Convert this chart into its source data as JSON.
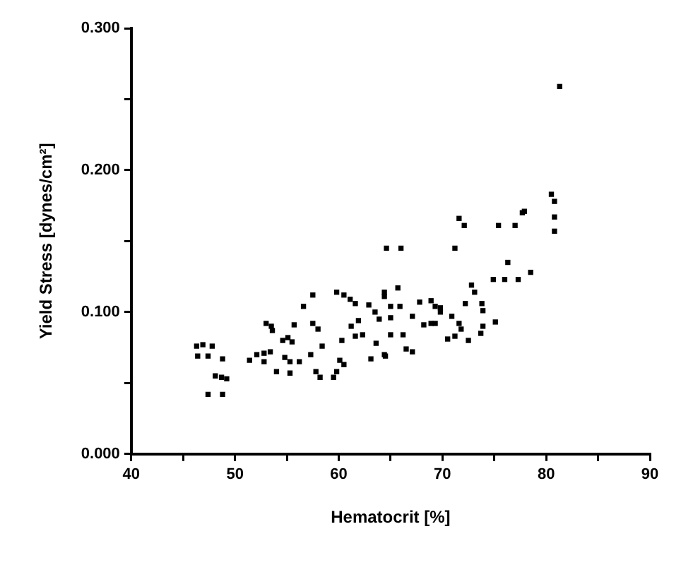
{
  "chart_data": {
    "type": "scatter",
    "xlabel": "Hematocrit [%]",
    "ylabel": "Yield Stress [dynes/cm²]",
    "marker": "square",
    "grid": false,
    "legend": false,
    "xlim": [
      40,
      90
    ],
    "ylim": [
      0,
      0.3
    ],
    "xticks": [
      40,
      {
        "value": 45,
        "label": null
      },
      50,
      {
        "value": 55,
        "label": null
      },
      60,
      {
        "value": 65,
        "label": null
      },
      70,
      {
        "value": 75,
        "label": null
      },
      80,
      {
        "value": 85,
        "label": null
      },
      90
    ],
    "yticks": [
      {
        "value": 0,
        "label": "0.000"
      },
      {
        "value": 0.05,
        "label": null
      },
      {
        "value": 0.1,
        "label": "0.100"
      },
      {
        "value": 0.15,
        "label": null
      },
      {
        "value": 0.2,
        "label": "0.200"
      },
      {
        "value": 0.25,
        "label": null
      },
      {
        "value": 0.3,
        "label": "0.300"
      }
    ],
    "series": [
      {
        "color": "#000000",
        "x": [
          46.3,
          46.9,
          47.8,
          46.4,
          47.4,
          48.8,
          48.1,
          48.7,
          49.2,
          47.4,
          48.8,
          51.4,
          52.1,
          52.8,
          53.4,
          52.8,
          53.0,
          53.5,
          53.6,
          54.0,
          54.6,
          55.1,
          55.5,
          54.8,
          55.3,
          55.3,
          56.2,
          55.7,
          56.6,
          57.5,
          57.5,
          58.0,
          57.3,
          57.8,
          58.2,
          58.4,
          59.5,
          59.8,
          60.1,
          60.5,
          60.3,
          59.8,
          60.5,
          61.1,
          61.6,
          61.2,
          61.9,
          61.6,
          62.3,
          63.1,
          62.9,
          63.5,
          63.6,
          63.9,
          64.6,
          64.4,
          64.4,
          66.0,
          64.4,
          65.7,
          65.0,
          65.9,
          65.0,
          64.5,
          65.0,
          66.2,
          66.5,
          67.1,
          67.1,
          67.8,
          68.2,
          68.9,
          69.3,
          68.9,
          69.3,
          69.8,
          69.8,
          70.9,
          70.5,
          71.2,
          71.6,
          71.8,
          72.5,
          72.2,
          72.8,
          73.1,
          71.2,
          71.6,
          72.1,
          73.8,
          73.9,
          73.9,
          73.7,
          75.1,
          74.9,
          76.0,
          77.3,
          76.3,
          78.5,
          75.4,
          77.0,
          77.7,
          77.9,
          80.8,
          80.8,
          80.5,
          80.8,
          81.3
        ],
        "values": [
          0.076,
          0.077,
          0.076,
          0.069,
          0.069,
          0.067,
          0.055,
          0.054,
          0.053,
          0.042,
          0.042,
          0.066,
          0.07,
          0.071,
          0.072,
          0.065,
          0.092,
          0.09,
          0.087,
          0.058,
          0.08,
          0.082,
          0.079,
          0.068,
          0.065,
          0.057,
          0.065,
          0.091,
          0.104,
          0.112,
          0.092,
          0.088,
          0.07,
          0.058,
          0.054,
          0.076,
          0.054,
          0.058,
          0.066,
          0.063,
          0.08,
          0.114,
          0.112,
          0.109,
          0.106,
          0.09,
          0.094,
          0.083,
          0.084,
          0.067,
          0.105,
          0.1,
          0.078,
          0.095,
          0.145,
          0.114,
          0.07,
          0.145,
          0.111,
          0.117,
          0.104,
          0.104,
          0.096,
          0.069,
          0.084,
          0.084,
          0.074,
          0.072,
          0.097,
          0.107,
          0.091,
          0.092,
          0.092,
          0.108,
          0.104,
          0.103,
          0.1,
          0.097,
          0.081,
          0.083,
          0.092,
          0.088,
          0.08,
          0.106,
          0.119,
          0.114,
          0.145,
          0.166,
          0.161,
          0.106,
          0.101,
          0.09,
          0.085,
          0.093,
          0.123,
          0.123,
          0.123,
          0.135,
          0.128,
          0.161,
          0.161,
          0.17,
          0.171,
          0.167,
          0.157,
          0.183,
          0.178,
          0.259
        ]
      }
    ]
  }
}
